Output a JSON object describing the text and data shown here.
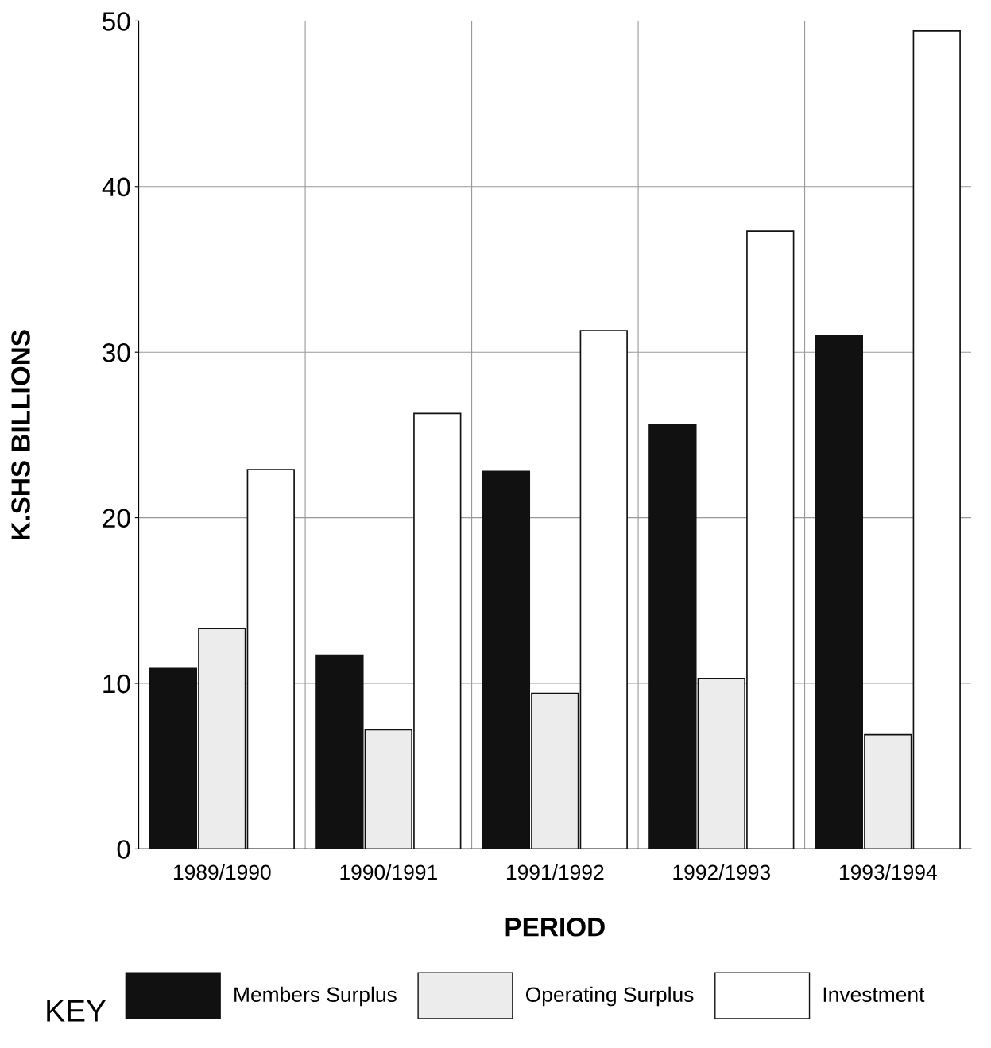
{
  "chart_data": {
    "type": "bar",
    "xlabel": "PERIOD",
    "ylabel": "K.SHS BILLIONS",
    "legend_title": "KEY",
    "categories": [
      "1989/1990",
      "1990/1991",
      "1991/1992",
      "1992/1993",
      "1993/1994"
    ],
    "series": [
      {
        "name": "Members Surplus",
        "color": "#111111",
        "values": [
          10.9,
          11.7,
          22.8,
          25.6,
          31.0
        ]
      },
      {
        "name": "Operating Surplus",
        "color": "#ececec",
        "values": [
          13.3,
          7.2,
          9.4,
          10.3,
          6.9
        ]
      },
      {
        "name": "Investment",
        "color": "#ffffff",
        "values": [
          22.9,
          26.3,
          31.3,
          37.3,
          49.4
        ]
      }
    ],
    "ylim": [
      0,
      50
    ],
    "yticks": [
      0,
      10,
      20,
      30,
      40,
      50
    ],
    "grid": true,
    "legend": "bottom"
  }
}
